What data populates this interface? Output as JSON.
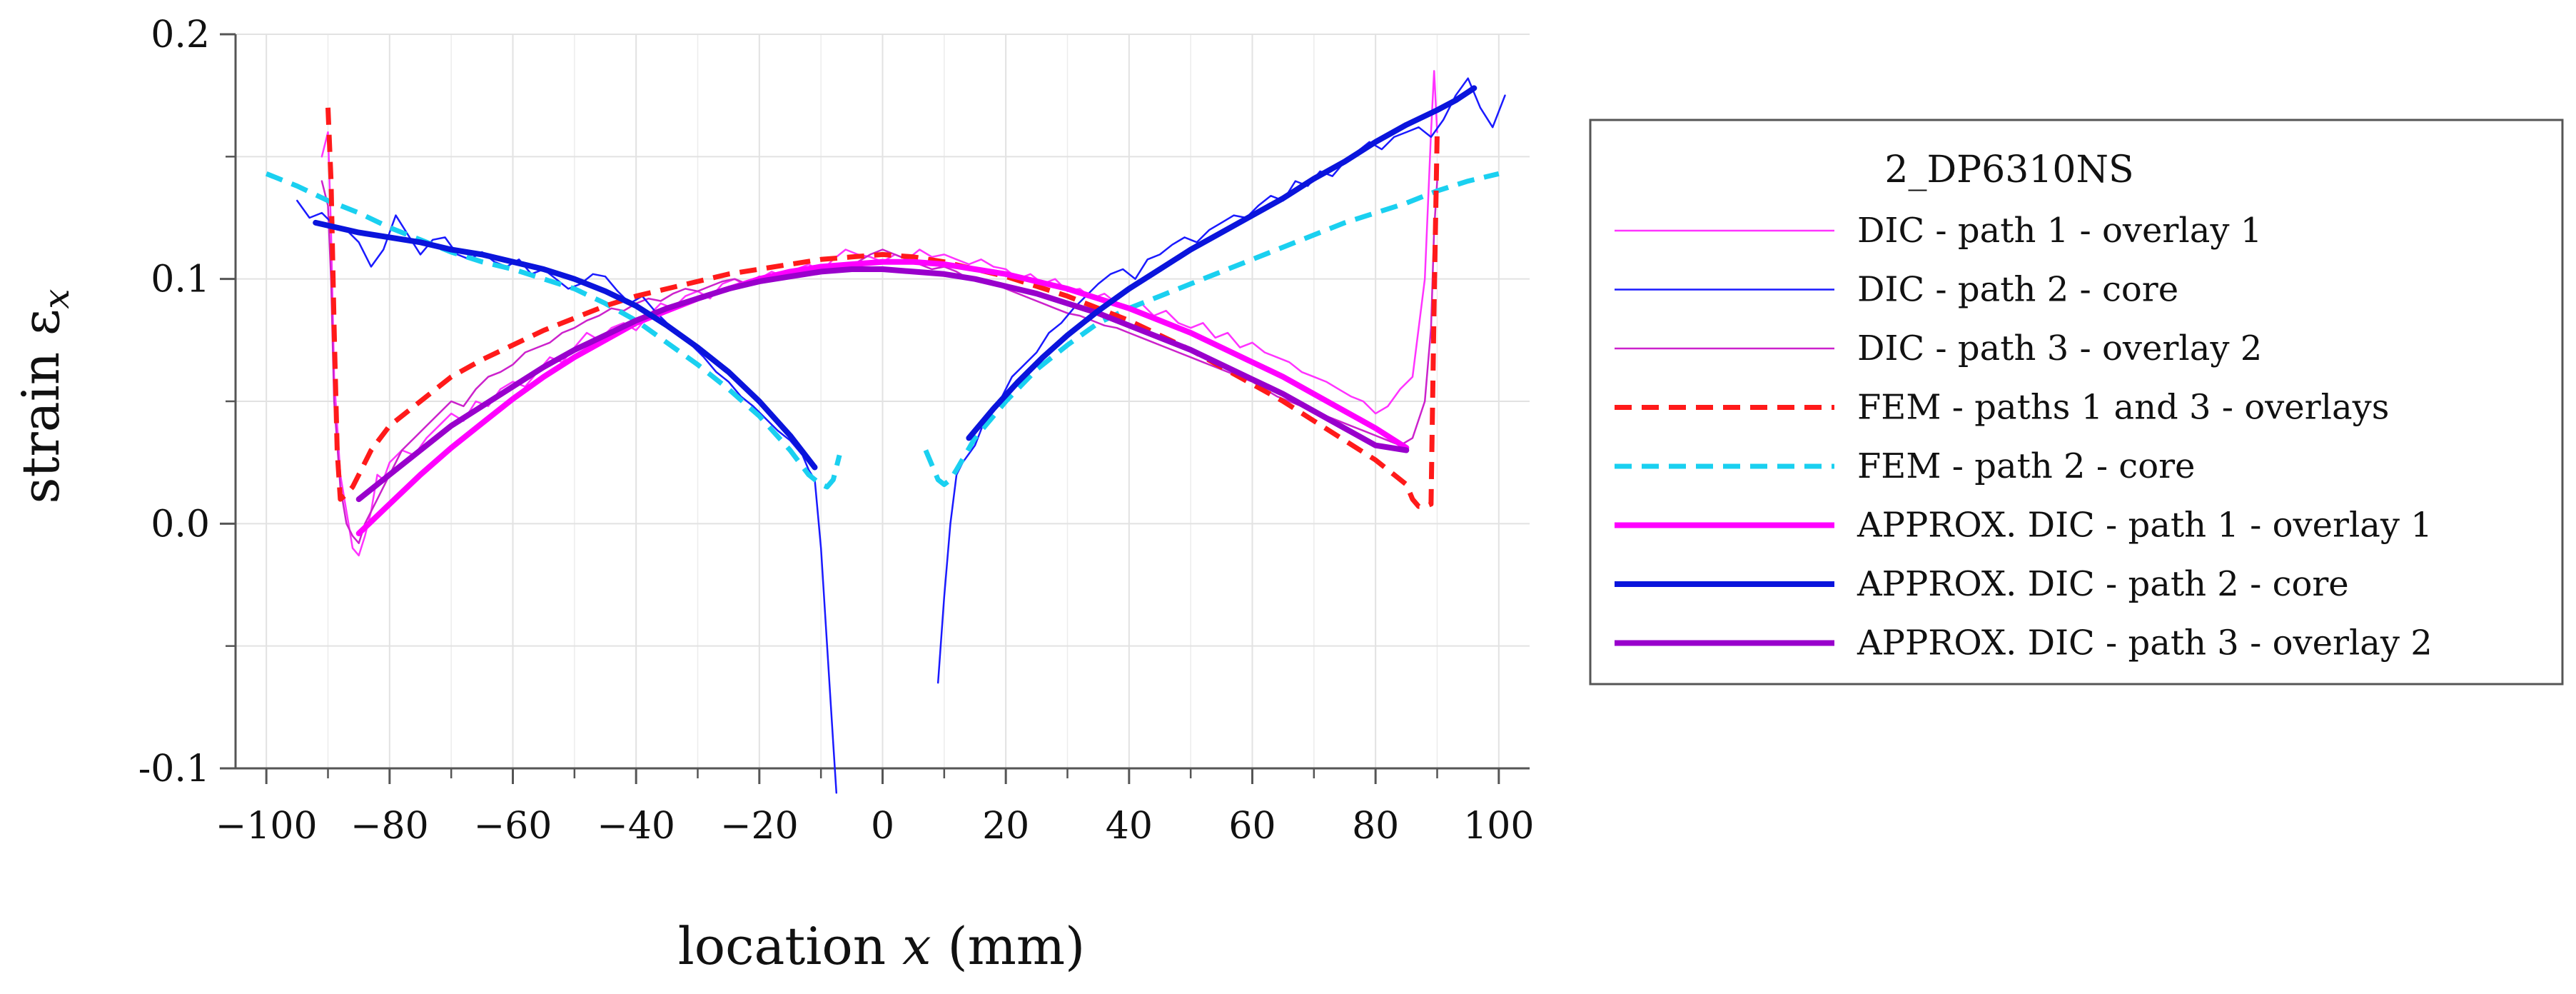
{
  "chart_data": {
    "type": "line",
    "xlabel": "location x (mm)",
    "xlabel_parts": {
      "pre": "location ",
      "var": "x",
      "post": " (mm)"
    },
    "ylabel": "strain εx",
    "ylabel_parts": {
      "pre": "strain ε",
      "sub": "x"
    },
    "xlim": [
      -105,
      105
    ],
    "ylim": [
      -0.1,
      0.2
    ],
    "xticks": [
      -100,
      -80,
      -60,
      -40,
      -20,
      0,
      20,
      40,
      60,
      80,
      100
    ],
    "xtick_labels": [
      "−100",
      "−80",
      "−60",
      "−40",
      "−20",
      "0",
      "20",
      "40",
      "60",
      "80",
      "100"
    ],
    "yticks": [
      -0.1,
      0.0,
      0.1,
      0.2
    ],
    "ytick_labels": [
      "-0.1",
      "0.0",
      "0.1",
      "0.2"
    ],
    "grid": true,
    "legend_title": "2_DP6310NS",
    "legend_position": "right",
    "series": [
      {
        "name": "DIC - path 1 - overlay 1",
        "color": "#ff33ff",
        "width": 2.5,
        "dash": "",
        "x": [
          -91,
          -90,
          -89.5,
          -89,
          -88,
          -87,
          -86,
          -85,
          -84,
          -83,
          -82,
          -81,
          -80,
          -78,
          -76,
          -74,
          -72,
          -70,
          -68,
          -66,
          -64,
          -62,
          -60,
          -58,
          -56,
          -54,
          -52,
          -50,
          -48,
          -46,
          -44,
          -42,
          -40,
          -38,
          -36,
          -34,
          -32,
          -30,
          -28,
          -26,
          -24,
          -22,
          -20,
          -18,
          -16,
          -14,
          -12,
          -10,
          -8,
          -6,
          -4,
          -2,
          0,
          2,
          4,
          6,
          8,
          10,
          12,
          14,
          16,
          18,
          20,
          22,
          24,
          26,
          28,
          30,
          32,
          34,
          36,
          38,
          40,
          42,
          44,
          46,
          48,
          50,
          52,
          54,
          56,
          58,
          60,
          62,
          64,
          66,
          68,
          70,
          72,
          74,
          76,
          78,
          80,
          82,
          84,
          86,
          88,
          89,
          89.5,
          90
        ],
        "y": [
          0.15,
          0.16,
          0.12,
          0.06,
          0.02,
          0.005,
          -0.01,
          -0.013,
          -0.005,
          0.005,
          0.02,
          0.018,
          0.025,
          0.03,
          0.028,
          0.035,
          0.04,
          0.045,
          0.042,
          0.05,
          0.048,
          0.055,
          0.058,
          0.056,
          0.062,
          0.068,
          0.066,
          0.072,
          0.078,
          0.075,
          0.08,
          0.082,
          0.079,
          0.085,
          0.09,
          0.088,
          0.093,
          0.095,
          0.092,
          0.098,
          0.1,
          0.097,
          0.1,
          0.103,
          0.101,
          0.104,
          0.106,
          0.103,
          0.108,
          0.112,
          0.11,
          0.109,
          0.107,
          0.11,
          0.108,
          0.112,
          0.109,
          0.11,
          0.108,
          0.106,
          0.108,
          0.105,
          0.104,
          0.1,
          0.102,
          0.098,
          0.1,
          0.095,
          0.096,
          0.092,
          0.094,
          0.09,
          0.088,
          0.09,
          0.085,
          0.087,
          0.082,
          0.08,
          0.082,
          0.076,
          0.078,
          0.072,
          0.074,
          0.07,
          0.068,
          0.066,
          0.062,
          0.06,
          0.058,
          0.055,
          0.052,
          0.05,
          0.045,
          0.048,
          0.055,
          0.06,
          0.1,
          0.16,
          0.185,
          0.16
        ]
      },
      {
        "name": "DIC - path 2 - core",
        "color": "#1a1aff",
        "width": 2.5,
        "dash": "",
        "x": [
          -95,
          -93,
          -91,
          -89,
          -87,
          -85,
          -83,
          -81,
          -79,
          -77,
          -75,
          -73,
          -71,
          -69,
          -67,
          -65,
          -63,
          -61,
          -59,
          -57,
          -55,
          -53,
          -51,
          -49,
          -47,
          -45,
          -43,
          -41,
          -39,
          -37,
          -35,
          -33,
          -31,
          -29,
          -27,
          -25,
          -23,
          -21,
          -19,
          -17,
          -15,
          -13,
          -12,
          -11,
          -10,
          -9,
          -8,
          -7.5,
          null,
          9,
          10,
          11,
          12,
          13,
          15,
          17,
          19,
          21,
          23,
          25,
          27,
          29,
          31,
          33,
          35,
          37,
          39,
          41,
          43,
          45,
          47,
          49,
          51,
          53,
          55,
          57,
          59,
          61,
          63,
          65,
          67,
          69,
          71,
          73,
          75,
          77,
          79,
          81,
          83,
          85,
          87,
          89,
          91,
          93,
          95,
          97,
          99,
          101
        ],
        "y": [
          0.132,
          0.125,
          0.127,
          0.122,
          0.12,
          0.115,
          0.105,
          0.112,
          0.126,
          0.118,
          0.11,
          0.116,
          0.117,
          0.11,
          0.108,
          0.111,
          0.107,
          0.105,
          0.108,
          0.102,
          0.104,
          0.1,
          0.096,
          0.098,
          0.102,
          0.101,
          0.095,
          0.09,
          0.093,
          0.087,
          0.082,
          0.078,
          0.073,
          0.068,
          0.062,
          0.058,
          0.052,
          0.048,
          0.043,
          0.038,
          0.034,
          0.028,
          0.022,
          0.018,
          -0.01,
          -0.05,
          -0.09,
          -0.11,
          null,
          -0.065,
          -0.03,
          0.0,
          0.02,
          0.025,
          0.032,
          0.045,
          0.05,
          0.06,
          0.065,
          0.07,
          0.078,
          0.082,
          0.088,
          0.093,
          0.098,
          0.102,
          0.104,
          0.1,
          0.108,
          0.11,
          0.114,
          0.117,
          0.115,
          0.12,
          0.123,
          0.126,
          0.125,
          0.13,
          0.134,
          0.132,
          0.14,
          0.138,
          0.144,
          0.142,
          0.148,
          0.152,
          0.156,
          0.153,
          0.158,
          0.16,
          0.162,
          0.158,
          0.165,
          0.175,
          0.182,
          0.17,
          0.162,
          0.175
        ]
      },
      {
        "name": "DIC - path 3 - overlay 2",
        "color": "#cc22cc",
        "width": 2.5,
        "dash": "",
        "x": [
          -91,
          -90,
          -89.5,
          -89,
          -88,
          -87,
          -86,
          -85,
          -84,
          -82,
          -80,
          -78,
          -76,
          -74,
          -72,
          -70,
          -68,
          -66,
          -64,
          -62,
          -60,
          -58,
          -56,
          -54,
          -52,
          -50,
          -48,
          -46,
          -44,
          -42,
          -40,
          -38,
          -36,
          -34,
          -32,
          -30,
          -28,
          -26,
          -24,
          -22,
          -20,
          -18,
          -16,
          -14,
          -12,
          -10,
          -8,
          -6,
          -4,
          -2,
          0,
          2,
          4,
          6,
          8,
          10,
          12,
          14,
          16,
          18,
          20,
          22,
          24,
          26,
          28,
          30,
          32,
          34,
          36,
          38,
          40,
          42,
          44,
          46,
          48,
          50,
          52,
          54,
          56,
          58,
          60,
          62,
          64,
          66,
          68,
          70,
          72,
          74,
          76,
          78,
          80,
          82,
          84,
          86,
          88,
          89,
          89.5,
          90
        ],
        "y": [
          0.14,
          0.13,
          0.1,
          0.05,
          0.015,
          0.0,
          -0.005,
          -0.008,
          0.0,
          0.01,
          0.02,
          0.03,
          0.035,
          0.04,
          0.045,
          0.05,
          0.048,
          0.055,
          0.06,
          0.062,
          0.065,
          0.07,
          0.072,
          0.074,
          0.078,
          0.08,
          0.083,
          0.085,
          0.088,
          0.087,
          0.09,
          0.092,
          0.091,
          0.094,
          0.096,
          0.095,
          0.097,
          0.099,
          0.1,
          0.098,
          0.101,
          0.1,
          0.102,
          0.101,
          0.103,
          0.105,
          0.104,
          0.105,
          0.107,
          0.11,
          0.112,
          0.11,
          0.108,
          0.106,
          0.104,
          0.105,
          0.103,
          0.1,
          0.1,
          0.098,
          0.096,
          0.094,
          0.092,
          0.09,
          0.088,
          0.086,
          0.085,
          0.083,
          0.081,
          0.08,
          0.078,
          0.076,
          0.074,
          0.072,
          0.07,
          0.068,
          0.066,
          0.064,
          0.062,
          0.06,
          0.058,
          0.055,
          0.052,
          0.05,
          0.048,
          0.046,
          0.044,
          0.042,
          0.04,
          0.038,
          0.036,
          0.034,
          0.032,
          0.035,
          0.05,
          0.08,
          0.12,
          0.14
        ]
      },
      {
        "name": "FEM - paths 1 and 3 - overlays",
        "color": "#ff1a1a",
        "width": 7,
        "dash": "24 14",
        "x": [
          -90,
          -89.5,
          -89,
          -88.5,
          -88,
          -87,
          -86,
          -85,
          -83,
          -80,
          -75,
          -70,
          -65,
          -60,
          -55,
          -50,
          -45,
          -40,
          -35,
          -30,
          -25,
          -20,
          -15,
          -10,
          -5,
          0,
          5,
          10,
          15,
          20,
          25,
          30,
          35,
          40,
          45,
          50,
          55,
          60,
          65,
          70,
          75,
          80,
          83,
          85,
          86,
          87,
          88,
          89,
          89.5,
          90
        ],
        "y": [
          0.17,
          0.14,
          0.08,
          0.03,
          0.01,
          0.012,
          0.015,
          0.02,
          0.03,
          0.04,
          0.05,
          0.06,
          0.067,
          0.073,
          0.079,
          0.084,
          0.089,
          0.093,
          0.096,
          0.099,
          0.102,
          0.104,
          0.106,
          0.108,
          0.109,
          0.11,
          0.109,
          0.107,
          0.104,
          0.101,
          0.097,
          0.093,
          0.088,
          0.083,
          0.077,
          0.071,
          0.064,
          0.057,
          0.05,
          0.042,
          0.034,
          0.026,
          0.02,
          0.016,
          0.01,
          0.007,
          0.007,
          0.008,
          0.09,
          0.16
        ]
      },
      {
        "name": "FEM - path 2 - core",
        "color": "#1ad0f0",
        "width": 7,
        "dash": "24 14",
        "x": [
          -100,
          -95,
          -90,
          -85,
          -80,
          -75,
          -70,
          -65,
          -60,
          -55,
          -50,
          -45,
          -40,
          -35,
          -30,
          -25,
          -20,
          -15,
          -12,
          -10,
          -9,
          -8,
          -7,
          null,
          7,
          8,
          9,
          10,
          11,
          12,
          15,
          20,
          25,
          30,
          35,
          40,
          45,
          50,
          55,
          60,
          65,
          70,
          75,
          80,
          85,
          90,
          95,
          100
        ],
        "y": [
          0.143,
          0.138,
          0.132,
          0.127,
          0.121,
          0.116,
          0.111,
          0.107,
          0.104,
          0.1,
          0.096,
          0.09,
          0.083,
          0.074,
          0.065,
          0.055,
          0.044,
          0.03,
          0.02,
          0.016,
          0.015,
          0.018,
          0.028,
          null,
          0.03,
          0.024,
          0.018,
          0.016,
          0.018,
          0.022,
          0.035,
          0.05,
          0.063,
          0.073,
          0.082,
          0.088,
          0.093,
          0.098,
          0.103,
          0.108,
          0.113,
          0.118,
          0.123,
          0.127,
          0.131,
          0.136,
          0.14,
          0.143
        ]
      },
      {
        "name": "APPROX. DIC - path 1 - overlay 1",
        "color": "#ff00ff",
        "width": 8,
        "dash": "",
        "x": [
          -85,
          -80,
          -75,
          -70,
          -65,
          -60,
          -55,
          -50,
          -45,
          -40,
          -35,
          -30,
          -25,
          -20,
          -15,
          -10,
          -5,
          0,
          5,
          10,
          15,
          20,
          25,
          30,
          35,
          40,
          45,
          50,
          55,
          60,
          65,
          70,
          75,
          80,
          85
        ],
        "y": [
          -0.004,
          0.008,
          0.02,
          0.031,
          0.041,
          0.051,
          0.06,
          0.068,
          0.075,
          0.082,
          0.087,
          0.092,
          0.096,
          0.1,
          0.103,
          0.105,
          0.106,
          0.107,
          0.107,
          0.106,
          0.104,
          0.102,
          0.099,
          0.096,
          0.092,
          0.088,
          0.083,
          0.078,
          0.072,
          0.066,
          0.06,
          0.053,
          0.046,
          0.039,
          0.031
        ]
      },
      {
        "name": "APPROX. DIC - path 2 - core",
        "color": "#0a14dc",
        "width": 8,
        "dash": "",
        "x": [
          -92,
          -85,
          -80,
          -75,
          -70,
          -65,
          -60,
          -55,
          -50,
          -45,
          -40,
          -35,
          -30,
          -25,
          -20,
          -15,
          -11,
          null,
          14,
          18,
          22,
          26,
          30,
          35,
          40,
          45,
          50,
          55,
          60,
          65,
          70,
          75,
          80,
          85,
          90,
          93,
          96
        ],
        "y": [
          0.123,
          0.119,
          0.117,
          0.115,
          0.112,
          0.11,
          0.107,
          0.104,
          0.1,
          0.095,
          0.089,
          0.081,
          0.072,
          0.062,
          0.05,
          0.036,
          0.023,
          null,
          0.035,
          0.047,
          0.058,
          0.068,
          0.077,
          0.087,
          0.096,
          0.104,
          0.112,
          0.119,
          0.126,
          0.133,
          0.141,
          0.148,
          0.156,
          0.163,
          0.169,
          0.173,
          0.178
        ]
      },
      {
        "name": "APPROX. DIC - path 3 - overlay 2",
        "color": "#9900cc",
        "width": 8,
        "dash": "",
        "x": [
          -85,
          -80,
          -75,
          -70,
          -65,
          -60,
          -55,
          -50,
          -45,
          -40,
          -35,
          -30,
          -25,
          -20,
          -15,
          -10,
          -5,
          0,
          5,
          10,
          15,
          20,
          25,
          30,
          35,
          40,
          45,
          50,
          55,
          60,
          65,
          70,
          75,
          80,
          85
        ],
        "y": [
          0.01,
          0.02,
          0.03,
          0.04,
          0.048,
          0.056,
          0.064,
          0.071,
          0.077,
          0.083,
          0.088,
          0.092,
          0.096,
          0.099,
          0.101,
          0.103,
          0.104,
          0.104,
          0.103,
          0.102,
          0.1,
          0.097,
          0.094,
          0.09,
          0.086,
          0.081,
          0.076,
          0.071,
          0.065,
          0.059,
          0.053,
          0.046,
          0.039,
          0.032,
          0.03
        ]
      }
    ]
  }
}
